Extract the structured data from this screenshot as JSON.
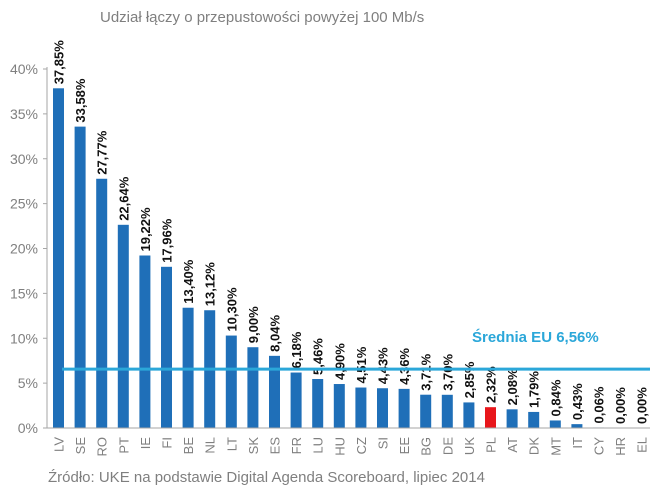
{
  "chart_data": {
    "type": "bar",
    "title": "Udział łączy o przepustowości powyżej 100 Mb/s",
    "xlabel": "",
    "ylabel": "",
    "ylim": [
      0,
      40
    ],
    "ytick_labels": [
      "0%",
      "5%",
      "10%",
      "15%",
      "20%",
      "25%",
      "30%",
      "35%",
      "40%"
    ],
    "categories": [
      "LV",
      "SE",
      "RO",
      "PT",
      "IE",
      "FI",
      "BE",
      "NL",
      "LT",
      "SK",
      "ES",
      "FR",
      "LU",
      "HU",
      "CZ",
      "SI",
      "EE",
      "BG",
      "DE",
      "UK",
      "PL",
      "AT",
      "DK",
      "MT",
      "IT",
      "CY",
      "HR",
      "EL"
    ],
    "values": [
      37.85,
      33.58,
      27.77,
      22.64,
      19.22,
      17.96,
      13.4,
      13.12,
      10.3,
      9.0,
      8.04,
      6.18,
      5.46,
      4.9,
      4.51,
      4.43,
      4.36,
      3.71,
      3.7,
      2.85,
      2.32,
      2.08,
      1.79,
      0.84,
      0.43,
      0.06,
      0.0,
      0.0
    ],
    "data_labels": [
      "37,85%",
      "33,58%",
      "27,77%",
      "22,64%",
      "19,22%",
      "17,96%",
      "13,40%",
      "13,12%",
      "10,30%",
      "9,00%",
      "8,04%",
      "6,18%",
      "5,46%",
      "4,90%",
      "4,51%",
      "4,43%",
      "4,36%",
      "3,71%",
      "3,70%",
      "2,85%",
      "2,32%",
      "2,08%",
      "1,79%",
      "0,84%",
      "0,43%",
      "0,06%",
      "0,00%",
      "0,00%"
    ],
    "highlight": "PL",
    "average": {
      "label": "Średnia EU 6,56%",
      "value": 6.56
    },
    "grid": false,
    "legend": "none"
  },
  "source": "Źródło: UKE na podstawie Digital Agenda Scoreboard, lipiec 2014",
  "colors": {
    "bar": "#1f6fb8",
    "highlight": "#e8161b",
    "average_line": "#2ba7d9",
    "axis": "#a6a6a6"
  }
}
